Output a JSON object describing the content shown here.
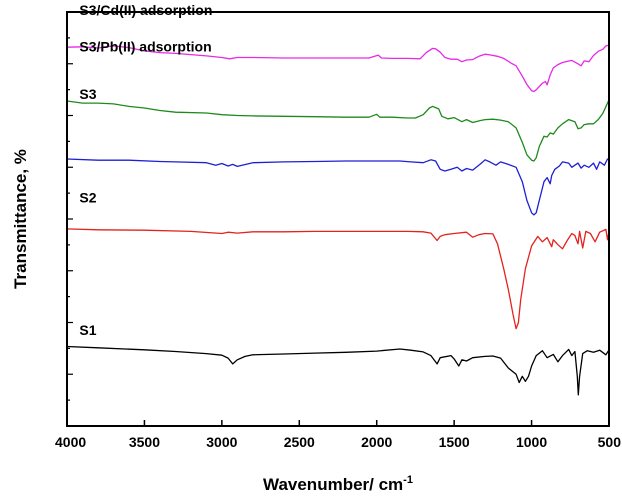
{
  "chart_data": {
    "type": "line",
    "title": "",
    "xlabel": "Wavenumber/ cm",
    "xlabel_sup": "-1",
    "ylabel": "Transmittance, %",
    "xlim": [
      4000,
      500
    ],
    "x_reversed": true,
    "ylim": [
      0,
      100
    ],
    "y_ticklabels_shown": false,
    "x_ticks": [
      4000,
      3500,
      3000,
      2500,
      2000,
      1500,
      1000,
      500
    ],
    "y_minor_ticks": 16,
    "grid": false,
    "legend": "none",
    "series": [
      {
        "name": "S1",
        "color": "#000000",
        "label_pos": [
          3920,
          22
        ],
        "points": [
          [
            4000,
            19.2
          ],
          [
            3800,
            18.9
          ],
          [
            3500,
            18.4
          ],
          [
            3300,
            18.0
          ],
          [
            3100,
            17.5
          ],
          [
            3000,
            17.1
          ],
          [
            2960,
            16.4
          ],
          [
            2930,
            15.0
          ],
          [
            2900,
            16.0
          ],
          [
            2850,
            16.8
          ],
          [
            2800,
            17.2
          ],
          [
            2600,
            17.4
          ],
          [
            2400,
            17.6
          ],
          [
            2200,
            17.8
          ],
          [
            2000,
            18.1
          ],
          [
            1850,
            18.6
          ],
          [
            1780,
            18.3
          ],
          [
            1700,
            17.9
          ],
          [
            1650,
            17.0
          ],
          [
            1610,
            15.0
          ],
          [
            1590,
            16.5
          ],
          [
            1520,
            17.0
          ],
          [
            1500,
            16.2
          ],
          [
            1470,
            14.5
          ],
          [
            1450,
            16.0
          ],
          [
            1420,
            15.7
          ],
          [
            1380,
            16.5
          ],
          [
            1300,
            16.8
          ],
          [
            1250,
            16.9
          ],
          [
            1200,
            16.4
          ],
          [
            1150,
            14.0
          ],
          [
            1100,
            12.5
          ],
          [
            1080,
            10.5
          ],
          [
            1060,
            12.0
          ],
          [
            1040,
            10.8
          ],
          [
            1020,
            12.0
          ],
          [
            1000,
            14.5
          ],
          [
            970,
            17.0
          ],
          [
            930,
            18.2
          ],
          [
            900,
            16.5
          ],
          [
            860,
            17.3
          ],
          [
            830,
            15.5
          ],
          [
            800,
            17.0
          ],
          [
            760,
            18.5
          ],
          [
            740,
            17.0
          ],
          [
            720,
            18.0
          ],
          [
            705,
            12.0
          ],
          [
            698,
            7.5
          ],
          [
            690,
            12.0
          ],
          [
            670,
            17.5
          ],
          [
            640,
            18.2
          ],
          [
            600,
            17.8
          ],
          [
            560,
            18.3
          ],
          [
            520,
            17.2
          ],
          [
            500,
            18.4
          ]
        ]
      },
      {
        "name": "S2",
        "color": "#e3231f",
        "label_pos": [
          3920,
          54
        ],
        "points": [
          [
            4000,
            47.6
          ],
          [
            3800,
            47.4
          ],
          [
            3500,
            47.3
          ],
          [
            3200,
            47.0
          ],
          [
            3000,
            46.5
          ],
          [
            2960,
            46.8
          ],
          [
            2900,
            46.6
          ],
          [
            2800,
            46.9
          ],
          [
            2600,
            46.9
          ],
          [
            2400,
            47.0
          ],
          [
            2200,
            47.0
          ],
          [
            2000,
            47.0
          ],
          [
            1800,
            47.0
          ],
          [
            1700,
            46.9
          ],
          [
            1650,
            46.6
          ],
          [
            1610,
            44.8
          ],
          [
            1590,
            45.8
          ],
          [
            1560,
            46.2
          ],
          [
            1500,
            46.5
          ],
          [
            1420,
            46.8
          ],
          [
            1380,
            45.6
          ],
          [
            1340,
            46.2
          ],
          [
            1300,
            46.5
          ],
          [
            1250,
            46.4
          ],
          [
            1220,
            44.0
          ],
          [
            1180,
            38.0
          ],
          [
            1150,
            33.0
          ],
          [
            1120,
            27.0
          ],
          [
            1100,
            23.5
          ],
          [
            1085,
            25.0
          ],
          [
            1070,
            30.5
          ],
          [
            1040,
            38.0
          ],
          [
            1000,
            43.5
          ],
          [
            960,
            45.8
          ],
          [
            930,
            44.5
          ],
          [
            900,
            45.5
          ],
          [
            870,
            43.3
          ],
          [
            860,
            45.0
          ],
          [
            830,
            43.8
          ],
          [
            800,
            42.8
          ],
          [
            770,
            44.8
          ],
          [
            740,
            46.5
          ],
          [
            720,
            46.0
          ],
          [
            700,
            44.0
          ],
          [
            690,
            47.0
          ],
          [
            670,
            43.0
          ],
          [
            650,
            47.0
          ],
          [
            620,
            46.5
          ],
          [
            590,
            44.5
          ],
          [
            560,
            46.8
          ],
          [
            520,
            47.5
          ],
          [
            510,
            45.0
          ],
          [
            500,
            47.0
          ]
        ]
      },
      {
        "name": "S3",
        "color": "#1f1fd6",
        "label_pos": [
          3920,
          79
        ],
        "points": [
          [
            4000,
            64.5
          ],
          [
            3800,
            64.2
          ],
          [
            3600,
            64.2
          ],
          [
            3400,
            63.9
          ],
          [
            3300,
            63.8
          ],
          [
            3100,
            63.6
          ],
          [
            3040,
            63.0
          ],
          [
            3000,
            63.4
          ],
          [
            2960,
            62.8
          ],
          [
            2930,
            63.2
          ],
          [
            2900,
            62.7
          ],
          [
            2800,
            63.6
          ],
          [
            2600,
            63.8
          ],
          [
            2400,
            63.9
          ],
          [
            2200,
            64.0
          ],
          [
            2000,
            64.0
          ],
          [
            1850,
            64.0
          ],
          [
            1780,
            63.8
          ],
          [
            1700,
            63.6
          ],
          [
            1650,
            64.3
          ],
          [
            1620,
            64.0
          ],
          [
            1590,
            62.0
          ],
          [
            1560,
            61.6
          ],
          [
            1520,
            62.0
          ],
          [
            1480,
            62.5
          ],
          [
            1450,
            61.6
          ],
          [
            1420,
            62.2
          ],
          [
            1380,
            61.8
          ],
          [
            1330,
            63.3
          ],
          [
            1300,
            64.3
          ],
          [
            1270,
            63.8
          ],
          [
            1230,
            63.0
          ],
          [
            1200,
            63.8
          ],
          [
            1150,
            63.2
          ],
          [
            1100,
            62.5
          ],
          [
            1060,
            59.0
          ],
          [
            1030,
            54.5
          ],
          [
            1000,
            51.5
          ],
          [
            985,
            51.0
          ],
          [
            970,
            51.5
          ],
          [
            950,
            54.5
          ],
          [
            920,
            59.0
          ],
          [
            900,
            60.0
          ],
          [
            880,
            58.5
          ],
          [
            870,
            60.5
          ],
          [
            850,
            62.0
          ],
          [
            820,
            62.8
          ],
          [
            800,
            63.8
          ],
          [
            760,
            63.5
          ],
          [
            740,
            62.5
          ],
          [
            700,
            63.5
          ],
          [
            680,
            62.3
          ],
          [
            660,
            63.0
          ],
          [
            630,
            62.5
          ],
          [
            600,
            63.5
          ],
          [
            580,
            62.0
          ],
          [
            560,
            63.8
          ],
          [
            530,
            63.0
          ],
          [
            510,
            64.5
          ],
          [
            500,
            64.3
          ]
        ]
      },
      {
        "name": "S3/Pb(II) adsorption",
        "color": "#1e8a1e",
        "label_pos": [
          3920,
          90.5
        ],
        "points": [
          [
            4000,
            78.5
          ],
          [
            3900,
            78.0
          ],
          [
            3800,
            78.0
          ],
          [
            3700,
            77.8
          ],
          [
            3600,
            77.2
          ],
          [
            3500,
            76.8
          ],
          [
            3400,
            76.2
          ],
          [
            3300,
            75.8
          ],
          [
            3100,
            75.6
          ],
          [
            3000,
            75.2
          ],
          [
            2900,
            75.0
          ],
          [
            2800,
            74.9
          ],
          [
            2600,
            74.8
          ],
          [
            2400,
            74.7
          ],
          [
            2200,
            74.6
          ],
          [
            2050,
            74.6
          ],
          [
            2000,
            75.3
          ],
          [
            1980,
            74.6
          ],
          [
            1900,
            74.6
          ],
          [
            1800,
            74.4
          ],
          [
            1750,
            74.4
          ],
          [
            1700,
            75.2
          ],
          [
            1660,
            76.8
          ],
          [
            1640,
            77.2
          ],
          [
            1600,
            76.6
          ],
          [
            1580,
            74.8
          ],
          [
            1540,
            74.2
          ],
          [
            1500,
            74.5
          ],
          [
            1450,
            73.5
          ],
          [
            1420,
            74.0
          ],
          [
            1380,
            73.3
          ],
          [
            1330,
            73.8
          ],
          [
            1300,
            74.0
          ],
          [
            1250,
            74.1
          ],
          [
            1200,
            73.9
          ],
          [
            1150,
            73.5
          ],
          [
            1100,
            72.0
          ],
          [
            1060,
            68.5
          ],
          [
            1030,
            65.5
          ],
          [
            1000,
            64.2
          ],
          [
            985,
            64.0
          ],
          [
            970,
            64.8
          ],
          [
            950,
            67.5
          ],
          [
            920,
            70.0
          ],
          [
            900,
            69.8
          ],
          [
            880,
            70.8
          ],
          [
            860,
            70.5
          ],
          [
            830,
            72.0
          ],
          [
            800,
            73.0
          ],
          [
            760,
            74.0
          ],
          [
            720,
            73.5
          ],
          [
            700,
            71.8
          ],
          [
            680,
            72.0
          ],
          [
            660,
            72.8
          ],
          [
            630,
            73.0
          ],
          [
            600,
            73.0
          ],
          [
            570,
            74.0
          ],
          [
            540,
            75.5
          ],
          [
            510,
            78.0
          ],
          [
            500,
            78.8
          ]
        ]
      },
      {
        "name": "S3/Cd(II) adsorption",
        "color": "#e62ae6",
        "label_pos": [
          3920,
          99.3
        ],
        "points": [
          [
            4000,
            91.5
          ],
          [
            3900,
            91.6
          ],
          [
            3800,
            91.3
          ],
          [
            3700,
            91.8
          ],
          [
            3600,
            91.4
          ],
          [
            3500,
            90.6
          ],
          [
            3400,
            90.2
          ],
          [
            3300,
            90.0
          ],
          [
            3100,
            89.4
          ],
          [
            3000,
            89.0
          ],
          [
            2950,
            88.7
          ],
          [
            2900,
            89.0
          ],
          [
            2800,
            89.0
          ],
          [
            2600,
            88.9
          ],
          [
            2400,
            88.9
          ],
          [
            2200,
            88.9
          ],
          [
            2050,
            88.9
          ],
          [
            1990,
            89.6
          ],
          [
            1970,
            88.9
          ],
          [
            1900,
            88.8
          ],
          [
            1800,
            88.8
          ],
          [
            1720,
            88.7
          ],
          [
            1680,
            90.2
          ],
          [
            1640,
            91.2
          ],
          [
            1620,
            91.1
          ],
          [
            1590,
            90.3
          ],
          [
            1560,
            89.0
          ],
          [
            1520,
            88.6
          ],
          [
            1480,
            88.6
          ],
          [
            1450,
            88.0
          ],
          [
            1420,
            88.4
          ],
          [
            1380,
            88.5
          ],
          [
            1340,
            89.3
          ],
          [
            1300,
            89.8
          ],
          [
            1260,
            89.6
          ],
          [
            1220,
            89.3
          ],
          [
            1180,
            88.8
          ],
          [
            1130,
            87.6
          ],
          [
            1100,
            87.0
          ],
          [
            1060,
            84.5
          ],
          [
            1030,
            82.5
          ],
          [
            1000,
            81.0
          ],
          [
            985,
            80.8
          ],
          [
            970,
            81.2
          ],
          [
            950,
            82.0
          ],
          [
            930,
            82.8
          ],
          [
            910,
            83.2
          ],
          [
            900,
            82.4
          ],
          [
            880,
            84.8
          ],
          [
            860,
            86.5
          ],
          [
            830,
            87.3
          ],
          [
            800,
            87.8
          ],
          [
            780,
            88.0
          ],
          [
            740,
            88.3
          ],
          [
            700,
            87.5
          ],
          [
            680,
            87.0
          ],
          [
            660,
            88.2
          ],
          [
            630,
            88.0
          ],
          [
            600,
            89.5
          ],
          [
            570,
            90.5
          ],
          [
            540,
            91.0
          ],
          [
            520,
            91.8
          ],
          [
            500,
            92.0
          ]
        ]
      }
    ]
  }
}
